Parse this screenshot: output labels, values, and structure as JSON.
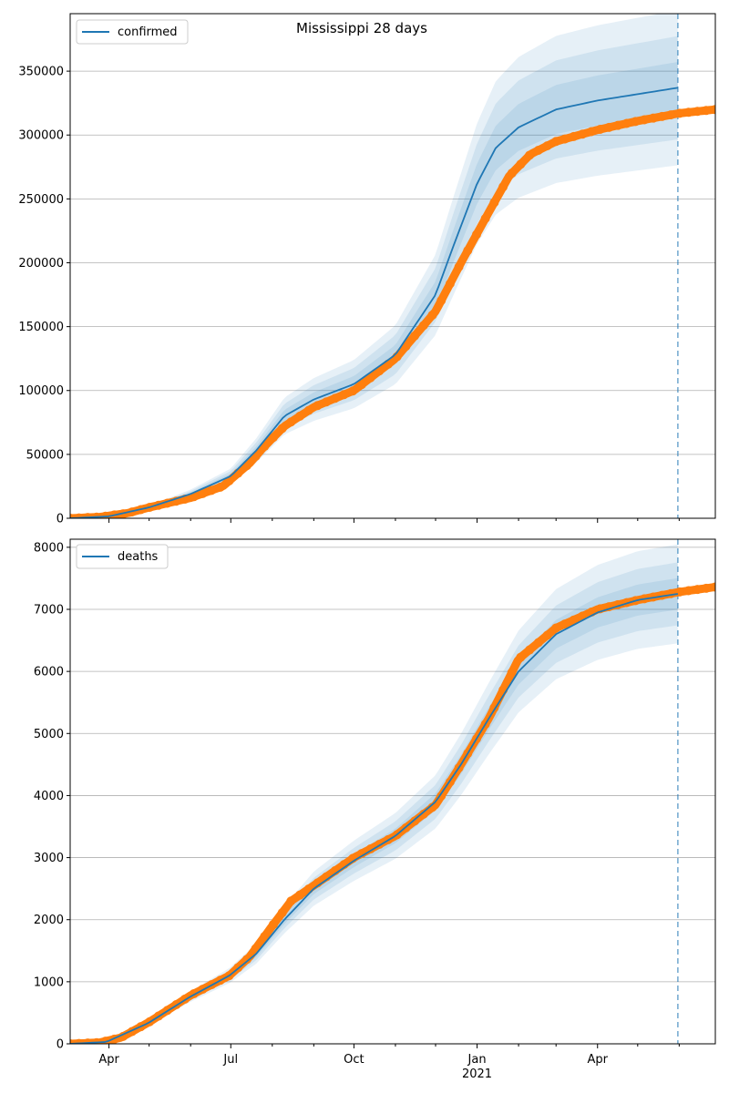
{
  "title": "Mississippi 28 days",
  "colors": {
    "model": "#1f77b4",
    "observed": "#ff7f0e",
    "band": "#1f77b4",
    "grid": "#b0b0b0",
    "forecast_line": "#1f77b4"
  },
  "x_axis": {
    "ticks": [
      {
        "date": "2020-04-01",
        "label": "Apr",
        "sublabel": ""
      },
      {
        "date": "2020-07-01",
        "label": "Jul",
        "sublabel": ""
      },
      {
        "date": "2020-10-01",
        "label": "Oct",
        "sublabel": ""
      },
      {
        "date": "2021-01-01",
        "label": "Jan",
        "sublabel": "2021"
      },
      {
        "date": "2021-04-01",
        "label": "Apr",
        "sublabel": ""
      }
    ]
  },
  "chart_data": [
    {
      "type": "line",
      "legend": "confirmed",
      "legend_position": "top-left",
      "grid": "y",
      "xlim": [
        "2020-03-03",
        "2021-06-28"
      ],
      "ylim": [
        0,
        395000
      ],
      "yticks": [
        0,
        50000,
        100000,
        150000,
        200000,
        250000,
        300000,
        350000
      ],
      "forecast_date": "2021-05-31",
      "model": {
        "name": "confirmed",
        "x": [
          "2020-03-03",
          "2020-04-01",
          "2020-05-01",
          "2020-06-01",
          "2020-07-01",
          "2020-07-20",
          "2020-08-10",
          "2020-09-01",
          "2020-10-01",
          "2020-11-01",
          "2020-12-01",
          "2020-12-15",
          "2021-01-01",
          "2021-01-15",
          "2021-02-01",
          "2021-03-01",
          "2021-04-01",
          "2021-05-01",
          "2021-05-31"
        ],
        "y": [
          0,
          1500,
          8500,
          19000,
          33000,
          53000,
          80000,
          93000,
          105000,
          128000,
          175000,
          215000,
          262000,
          290000,
          306000,
          320000,
          327000,
          332000,
          337000
        ],
        "band_halfwidths_pct": [
          6,
          12,
          18
        ]
      },
      "observed": {
        "x": [
          "2020-03-03",
          "2020-03-25",
          "2020-04-15",
          "2020-05-01",
          "2020-06-01",
          "2020-06-25",
          "2020-07-15",
          "2020-07-25",
          "2020-08-10",
          "2020-09-01",
          "2020-10-01",
          "2020-11-01",
          "2020-12-01",
          "2020-12-20",
          "2021-01-10",
          "2021-01-25",
          "2021-02-10",
          "2021-03-01",
          "2021-04-01",
          "2021-05-01",
          "2021-06-01",
          "2021-06-28"
        ],
        "y": [
          0,
          1000,
          4000,
          8500,
          16000,
          25000,
          43000,
          55000,
          72000,
          87000,
          100000,
          125000,
          162000,
          200000,
          240000,
          268000,
          285000,
          295000,
          304000,
          311000,
          317000,
          320000
        ]
      }
    },
    {
      "type": "line",
      "legend": "deaths",
      "legend_position": "top-left",
      "grid": "y",
      "xlim": [
        "2020-03-03",
        "2021-06-28"
      ],
      "ylim": [
        0,
        8130
      ],
      "yticks": [
        0,
        1000,
        2000,
        3000,
        4000,
        5000,
        6000,
        7000,
        8000
      ],
      "forecast_date": "2021-05-31",
      "model": {
        "name": "deaths",
        "x": [
          "2020-03-03",
          "2020-03-30",
          "2020-04-30",
          "2020-05-31",
          "2020-06-30",
          "2020-07-20",
          "2020-08-10",
          "2020-09-01",
          "2020-10-01",
          "2020-11-01",
          "2020-12-01",
          "2020-12-20",
          "2021-01-10",
          "2021-02-01",
          "2021-03-01",
          "2021-04-01",
          "2021-05-01",
          "2021-05-31"
        ],
        "y": [
          0,
          30,
          330,
          750,
          1100,
          1450,
          2000,
          2500,
          2950,
          3350,
          3900,
          4500,
          5250,
          6000,
          6600,
          6950,
          7150,
          7250
        ],
        "band_halfwidths_pct": [
          3.5,
          7,
          11
        ]
      },
      "observed": {
        "x": [
          "2020-03-03",
          "2020-03-25",
          "2020-04-10",
          "2020-05-01",
          "2020-06-01",
          "2020-06-30",
          "2020-07-15",
          "2020-08-01",
          "2020-08-15",
          "2020-09-01",
          "2020-10-01",
          "2020-11-01",
          "2020-12-01",
          "2020-12-20",
          "2021-01-10",
          "2021-02-01",
          "2021-03-01",
          "2021-04-01",
          "2021-05-01",
          "2021-06-01",
          "2021-06-28"
        ],
        "y": [
          0,
          20,
          100,
          350,
          780,
          1100,
          1400,
          1900,
          2300,
          2550,
          3000,
          3350,
          3850,
          4500,
          5250,
          6200,
          6700,
          7000,
          7150,
          7280,
          7360
        ]
      }
    }
  ]
}
